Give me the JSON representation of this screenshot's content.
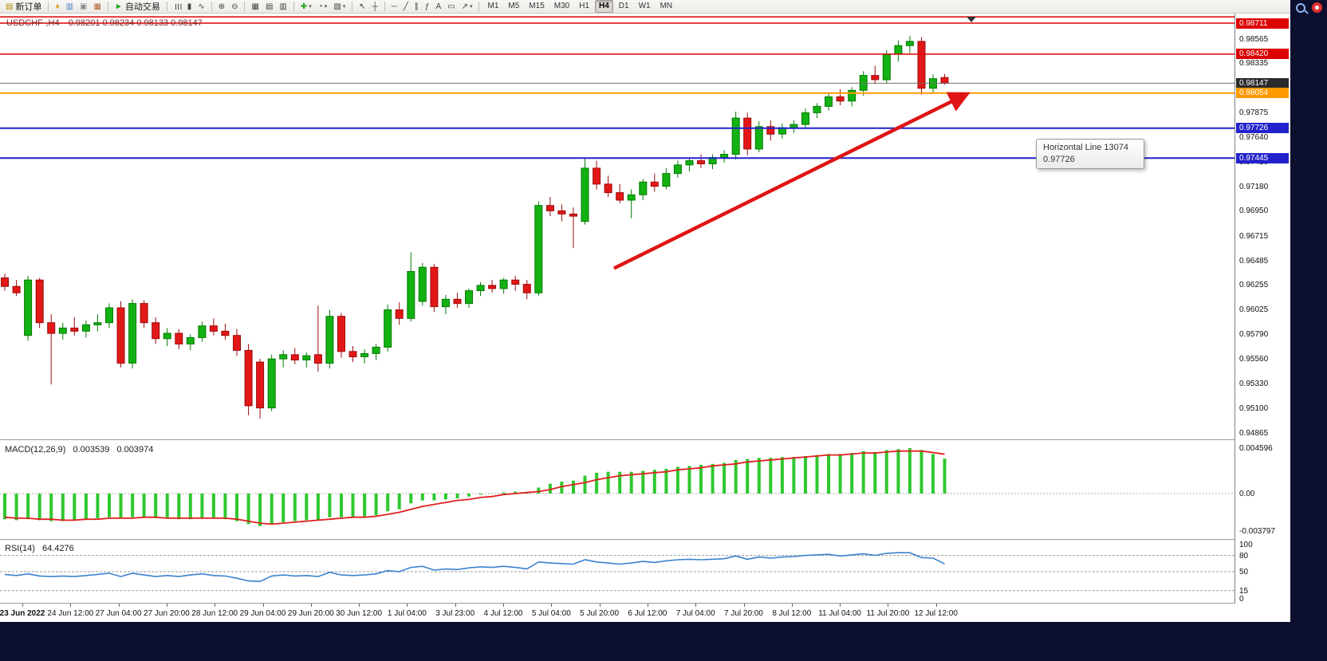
{
  "toolbar": {
    "groups": [
      {
        "items": [
          {
            "name": "new-order-button",
            "glyph": "▤",
            "glyph_color": "#b58900",
            "label": "新订单"
          }
        ]
      },
      {
        "items": [
          {
            "name": "alerts-icon-button",
            "glyph": "♦",
            "glyph_color": "#dfa01e"
          },
          {
            "name": "market-watch-button",
            "glyph": "▥",
            "glyph_color": "#4a7dbd"
          },
          {
            "name": "data-window-button",
            "glyph": "▣",
            "glyph_color": "#8a8a8a"
          },
          {
            "name": "strategy-tester-button",
            "glyph": "▦",
            "glyph_color": "#b06030"
          }
        ]
      },
      {
        "items": [
          {
            "name": "auto-trading-button",
            "glyph": "►",
            "glyph_color": "#18a818",
            "label": "自动交易"
          }
        ]
      },
      {
        "items": [
          {
            "name": "bar-chart-button",
            "glyph": "☰",
            "rotate": true
          },
          {
            "name": "candlestick-chart-button",
            "glyph": "▮"
          },
          {
            "name": "line-chart-button",
            "glyph": "∿"
          }
        ]
      },
      {
        "items": [
          {
            "name": "zoom-in-button",
            "glyph": "⊕"
          },
          {
            "name": "zoom-out-button",
            "glyph": "⊖"
          }
        ]
      },
      {
        "items": [
          {
            "name": "tile-windows-button",
            "glyph": "▦"
          },
          {
            "name": "new-chart-button",
            "glyph": "▤"
          },
          {
            "name": "profiles-button",
            "glyph": "▥"
          }
        ]
      },
      {
        "items": [
          {
            "name": "indicators-button",
            "glyph": "✚",
            "glyph_color": "#18a818",
            "caret": true
          },
          {
            "name": "periods-button",
            "glyph": "◔",
            "caret": true
          },
          {
            "name": "templates-button",
            "glyph": "▧",
            "caret": true
          }
        ]
      },
      {
        "items": [
          {
            "name": "cursor-button",
            "glyph": "↖"
          },
          {
            "name": "crosshair-button",
            "glyph": "┼"
          }
        ]
      },
      {
        "items": [
          {
            "name": "horizontal-line-button",
            "glyph": "─"
          },
          {
            "name": "trendline-button",
            "glyph": "╱"
          },
          {
            "name": "channel-button",
            "glyph": "∥"
          },
          {
            "name": "fibonacci-button",
            "glyph": "ƒ"
          },
          {
            "name": "text-button",
            "glyph": "A"
          },
          {
            "name": "shapes-button",
            "glyph": "▭"
          },
          {
            "name": "arrows-button",
            "glyph": "↗",
            "caret": true
          }
        ]
      }
    ],
    "timeframes": [
      {
        "label": "M1"
      },
      {
        "label": "M5"
      },
      {
        "label": "M15"
      },
      {
        "label": "M30"
      },
      {
        "label": "H1"
      },
      {
        "label": "H4",
        "active": true
      },
      {
        "label": "D1"
      },
      {
        "label": "W1"
      },
      {
        "label": "MN"
      }
    ]
  },
  "right_rail": {
    "icons": [
      "search-icon",
      "notification-icon"
    ]
  },
  "chart": {
    "title_symbol": "USDCHF-,H4",
    "title_ohlc": "0.98201 0.98234 0.98133 0.98147",
    "tooltip": {
      "line1": "Horizontal Line 13074",
      "line2": "0.97726"
    }
  },
  "chart_data": {
    "type": "candlestick",
    "symbol_period": "USDCHF-,H4",
    "current_ohlc": {
      "open": 0.98201,
      "high": 0.98234,
      "low": 0.98133,
      "close": 0.98147
    },
    "price_range": {
      "top": 0.98801,
      "bottom": 0.94805
    },
    "colors": {
      "bull": "#12b212",
      "bull_border": "#067a06",
      "bear": "#e21717",
      "bear_border": "#9e0b0b",
      "macd_hist": "#2ec82e",
      "macd_signal": "#e02020",
      "rsi_line": "#3b82d0",
      "hline_red": "#dd0000",
      "hline_orange": "#ff9900",
      "hline_blue": "#2222cc",
      "workspace_navy": "#0d0f2e"
    },
    "y_axis_ticks": [
      0.98565,
      0.98335,
      0.97875,
      0.9764,
      0.9741,
      0.9718,
      0.9695,
      0.96715,
      0.96485,
      0.96255,
      0.96025,
      0.9579,
      0.9556,
      0.9533,
      0.951,
      0.94865
    ],
    "x_labels": [
      "23 Jun 2022",
      "24 Jun 12:00",
      "27 Jun 04:00",
      "27 Jun 20:00",
      "28 Jun 12:00",
      "29 Jun 04:00",
      "29 Jun 20:00",
      "30 Jun 12:00",
      "1 Jul 04:00",
      "3 Jul 23:00",
      "4 Jul 12:00",
      "5 Jul 04:00",
      "5 Jul 20:00",
      "6 Jul 12:00",
      "7 Jul 04:00",
      "7 Jul 20:00",
      "8 Jul 12:00",
      "11 Jul 04:00",
      "11 Jul 20:00",
      "12 Jul 12:00"
    ],
    "candles": [
      [
        0.9632,
        0.9636,
        0.962,
        0.9624
      ],
      [
        0.9624,
        0.963,
        0.9615,
        0.9618
      ],
      [
        0.9578,
        0.9634,
        0.9573,
        0.963
      ],
      [
        0.963,
        0.9632,
        0.9585,
        0.959
      ],
      [
        0.959,
        0.9598,
        0.9532,
        0.958
      ],
      [
        0.958,
        0.959,
        0.9574,
        0.9585
      ],
      [
        0.9585,
        0.9595,
        0.9578,
        0.9582
      ],
      [
        0.9582,
        0.9592,
        0.9576,
        0.9588
      ],
      [
        0.9588,
        0.9598,
        0.9582,
        0.959
      ],
      [
        0.959,
        0.9608,
        0.9585,
        0.9604
      ],
      [
        0.9604,
        0.961,
        0.9548,
        0.9552
      ],
      [
        0.9552,
        0.9612,
        0.9547,
        0.9608
      ],
      [
        0.9608,
        0.9611,
        0.9585,
        0.959
      ],
      [
        0.959,
        0.9595,
        0.957,
        0.9575
      ],
      [
        0.9575,
        0.9585,
        0.9568,
        0.958
      ],
      [
        0.958,
        0.9584,
        0.9565,
        0.957
      ],
      [
        0.957,
        0.9579,
        0.9564,
        0.9576
      ],
      [
        0.9576,
        0.9591,
        0.9572,
        0.9587
      ],
      [
        0.9587,
        0.9594,
        0.9578,
        0.9582
      ],
      [
        0.9582,
        0.9589,
        0.9574,
        0.9578
      ],
      [
        0.9578,
        0.9584,
        0.9559,
        0.9564
      ],
      [
        0.9564,
        0.957,
        0.9503,
        0.9512
      ],
      [
        0.9553,
        0.9556,
        0.95,
        0.951
      ],
      [
        0.951,
        0.956,
        0.9507,
        0.9556
      ],
      [
        0.9556,
        0.9564,
        0.9548,
        0.956
      ],
      [
        0.956,
        0.9566,
        0.9551,
        0.9555
      ],
      [
        0.9555,
        0.9562,
        0.9548,
        0.9559
      ],
      [
        0.956,
        0.9606,
        0.9544,
        0.9552
      ],
      [
        0.9552,
        0.9602,
        0.9547,
        0.9596
      ],
      [
        0.9596,
        0.9599,
        0.9557,
        0.9563
      ],
      [
        0.9563,
        0.9568,
        0.9553,
        0.9558
      ],
      [
        0.9558,
        0.9565,
        0.9552,
        0.9561
      ],
      [
        0.9561,
        0.957,
        0.9555,
        0.9567
      ],
      [
        0.9567,
        0.9607,
        0.9563,
        0.9602
      ],
      [
        0.9602,
        0.9609,
        0.9588,
        0.9594
      ],
      [
        0.9594,
        0.9656,
        0.9591,
        0.9638
      ],
      [
        0.961,
        0.9646,
        0.9606,
        0.9642
      ],
      [
        0.9642,
        0.9645,
        0.96,
        0.9605
      ],
      [
        0.9605,
        0.9616,
        0.9598,
        0.9612
      ],
      [
        0.9612,
        0.9618,
        0.9604,
        0.9608
      ],
      [
        0.9608,
        0.9622,
        0.9604,
        0.962
      ],
      [
        0.962,
        0.9628,
        0.9615,
        0.9625
      ],
      [
        0.9625,
        0.963,
        0.9618,
        0.9622
      ],
      [
        0.9622,
        0.9632,
        0.9617,
        0.963
      ],
      [
        0.963,
        0.9634,
        0.962,
        0.9626
      ],
      [
        0.9626,
        0.963,
        0.9612,
        0.9618
      ],
      [
        0.9618,
        0.9704,
        0.9615,
        0.97
      ],
      [
        0.97,
        0.9708,
        0.969,
        0.9695
      ],
      [
        0.9695,
        0.9701,
        0.9685,
        0.9692
      ],
      [
        0.9692,
        0.9698,
        0.966,
        0.969
      ],
      [
        0.9685,
        0.9745,
        0.9682,
        0.9735
      ],
      [
        0.9735,
        0.9742,
        0.9715,
        0.972
      ],
      [
        0.972,
        0.9728,
        0.9708,
        0.9712
      ],
      [
        0.9712,
        0.972,
        0.9702,
        0.9705
      ],
      [
        0.9705,
        0.9715,
        0.9688,
        0.971
      ],
      [
        0.971,
        0.9725,
        0.9705,
        0.9722
      ],
      [
        0.9722,
        0.973,
        0.9713,
        0.9718
      ],
      [
        0.9718,
        0.9735,
        0.9715,
        0.973
      ],
      [
        0.973,
        0.9742,
        0.9726,
        0.9738
      ],
      [
        0.9738,
        0.9745,
        0.9732,
        0.9742
      ],
      [
        0.9742,
        0.9748,
        0.9735,
        0.9739
      ],
      [
        0.9739,
        0.9748,
        0.9734,
        0.9745
      ],
      [
        0.9745,
        0.9752,
        0.974,
        0.9748
      ],
      [
        0.9748,
        0.9788,
        0.9743,
        0.9782
      ],
      [
        0.9782,
        0.9787,
        0.9747,
        0.9753
      ],
      [
        0.9753,
        0.9779,
        0.975,
        0.9774
      ],
      [
        0.9774,
        0.978,
        0.9761,
        0.9767
      ],
      [
        0.9767,
        0.9777,
        0.9763,
        0.9773
      ],
      [
        0.9773,
        0.978,
        0.9768,
        0.9776
      ],
      [
        0.9776,
        0.9791,
        0.9772,
        0.9787
      ],
      [
        0.9787,
        0.9796,
        0.9782,
        0.9793
      ],
      [
        0.9793,
        0.9806,
        0.9789,
        0.9802
      ],
      [
        0.9802,
        0.9809,
        0.9794,
        0.9798
      ],
      [
        0.9798,
        0.9811,
        0.9793,
        0.9808
      ],
      [
        0.9808,
        0.9826,
        0.9803,
        0.9822
      ],
      [
        0.9822,
        0.9831,
        0.9814,
        0.9818
      ],
      [
        0.9818,
        0.9846,
        0.9815,
        0.9842
      ],
      [
        0.9842,
        0.9855,
        0.9835,
        0.985
      ],
      [
        0.985,
        0.9859,
        0.9843,
        0.9854
      ],
      [
        0.9854,
        0.9858,
        0.9804,
        0.981
      ],
      [
        0.981,
        0.9823,
        0.9806,
        0.9819
      ],
      [
        0.98201,
        0.98234,
        0.98133,
        0.98147
      ]
    ],
    "overlays": {
      "hlines": [
        {
          "price": 0.9877,
          "color": "#dd0000",
          "width": 1.5
        },
        {
          "price": 0.98711,
          "color": "#dd0000",
          "width": 1.5,
          "label": "0.98711",
          "badge": "#dd0000"
        },
        {
          "price": 0.9842,
          "color": "#dd0000",
          "width": 1.5,
          "label": "0.98420",
          "badge": "#dd0000"
        },
        {
          "price": 0.98147,
          "color": "#707070",
          "width": 1,
          "label": "0.98147",
          "badge": "#2b2b2b"
        },
        {
          "price": 0.98054,
          "color": "#ff9900",
          "width": 2,
          "label": "0.98054",
          "badge": "#ff9900"
        },
        {
          "price": 0.97726,
          "color": "#2222cc",
          "width": 2,
          "label": "0.97726",
          "badge": "#2222cc"
        },
        {
          "price": 0.97445,
          "color": "#2222cc",
          "width": 2,
          "label": "0.97445",
          "badge": "#2222cc"
        }
      ],
      "trend_arrow": {
        "from": {
          "i": 52.5,
          "price": 0.9641
        },
        "to": {
          "i": 82.8,
          "price": 0.9804
        },
        "color": "#e01414"
      },
      "shift_marker_index": 83.3
    },
    "indicators": {
      "macd": {
        "label": "MACD(12,26,9)",
        "value_main": "0.003539",
        "value_signal": "0.003974",
        "axis_max": 0.004596,
        "axis_min": -0.003797,
        "axis_labels": [
          {
            "v": 0.004596,
            "t": "0.004596"
          },
          {
            "v": 0,
            "t": "0.00"
          },
          {
            "v": -0.003797,
            "t": "-0.003797"
          }
        ],
        "hist": [
          -0.0026,
          -0.0027,
          -0.0026,
          -0.0027,
          -0.0028,
          -0.0028,
          -0.0027,
          -0.0026,
          -0.0025,
          -0.0024,
          -0.0025,
          -0.0024,
          -0.0024,
          -0.0025,
          -0.0025,
          -0.0026,
          -0.0026,
          -0.0025,
          -0.0025,
          -0.0026,
          -0.0028,
          -0.0031,
          -0.0033,
          -0.0031,
          -0.0029,
          -0.0028,
          -0.0027,
          -0.0027,
          -0.0024,
          -0.0024,
          -0.0024,
          -0.0023,
          -0.0022,
          -0.0018,
          -0.0016,
          -0.001,
          -0.0007,
          -0.0007,
          -0.0006,
          -0.0005,
          -0.0003,
          -0.0001,
          0.0,
          0.0001,
          0.0002,
          0.0001,
          0.0006,
          0.001,
          0.0012,
          0.0013,
          0.0018,
          0.0021,
          0.0022,
          0.0022,
          0.0022,
          0.0023,
          0.0024,
          0.0025,
          0.0027,
          0.0028,
          0.0029,
          0.003,
          0.0031,
          0.0034,
          0.0035,
          0.0036,
          0.0036,
          0.0037,
          0.0037,
          0.0038,
          0.0039,
          0.004,
          0.004,
          0.0041,
          0.0043,
          0.0042,
          0.0044,
          0.0045,
          0.0046,
          0.0044,
          0.004,
          0.003539
        ],
        "signal": [
          -0.0024,
          -0.0025,
          -0.0025,
          -0.0026,
          -0.0026,
          -0.0027,
          -0.0027,
          -0.0026,
          -0.0026,
          -0.0025,
          -0.0025,
          -0.0025,
          -0.0024,
          -0.0024,
          -0.0025,
          -0.0025,
          -0.0025,
          -0.0025,
          -0.0025,
          -0.0025,
          -0.0026,
          -0.0028,
          -0.003,
          -0.0031,
          -0.003,
          -0.0029,
          -0.0028,
          -0.0027,
          -0.0026,
          -0.0025,
          -0.0024,
          -0.0024,
          -0.0023,
          -0.0021,
          -0.0019,
          -0.0016,
          -0.0013,
          -0.0011,
          -0.0009,
          -0.0007,
          -0.0006,
          -0.0004,
          -0.0003,
          -0.0001,
          0.0,
          0.0001,
          0.0002,
          0.0004,
          0.0007,
          0.0009,
          0.0011,
          0.0014,
          0.0016,
          0.0018,
          0.0019,
          0.002,
          0.0021,
          0.0022,
          0.0024,
          0.0025,
          0.0026,
          0.0028,
          0.0029,
          0.003,
          0.0032,
          0.0033,
          0.0034,
          0.0035,
          0.0036,
          0.0037,
          0.0038,
          0.0039,
          0.0039,
          0.004,
          0.0041,
          0.0041,
          0.0042,
          0.0043,
          0.0043,
          0.0043,
          0.00415,
          0.003974
        ]
      },
      "rsi": {
        "label": "RSI(14)",
        "value": "64.4276",
        "levels": [
          80,
          50,
          15
        ],
        "axis_labels": [
          {
            "v": 100,
            "t": "100"
          },
          {
            "v": 80,
            "t": "80"
          },
          {
            "v": 50,
            "t": "50"
          },
          {
            "v": 15,
            "t": "15"
          },
          {
            "v": 0,
            "t": "0"
          }
        ],
        "values": [
          45,
          43,
          46,
          42,
          41,
          42,
          41,
          43,
          45,
          47,
          41,
          47,
          44,
          41,
          43,
          41,
          44,
          46,
          43,
          42,
          38,
          33,
          32,
          42,
          44,
          42,
          43,
          41,
          49,
          44,
          43,
          44,
          46,
          52,
          50,
          58,
          60,
          53,
          55,
          54,
          57,
          59,
          58,
          60,
          58,
          55,
          68,
          66,
          65,
          64,
          72,
          68,
          66,
          64,
          66,
          69,
          67,
          70,
          72,
          73,
          72,
          73,
          74,
          79,
          73,
          77,
          75,
          77,
          78,
          80,
          81,
          82,
          79,
          81,
          83,
          80,
          84,
          85,
          85,
          76,
          75,
          64.4276
        ]
      }
    }
  }
}
